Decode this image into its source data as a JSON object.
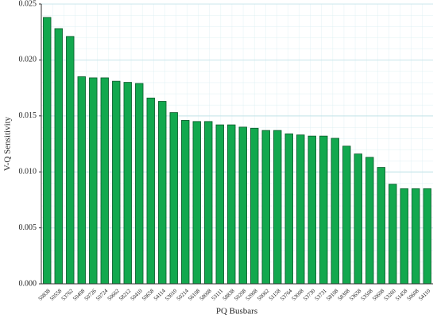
{
  "chart_data": {
    "type": "bar",
    "x_label": "PQ Busbars",
    "y_label": "V-Q Sensitivity",
    "categories": [
      "50838",
      "50558",
      "53762",
      "50408",
      "50726",
      "50724",
      "50662",
      "58212",
      "50410",
      "50658",
      "54114",
      "53010",
      "50214",
      "56108",
      "58008",
      "53111",
      "58838",
      "50208",
      "52908",
      "50062",
      "51158",
      "53764",
      "53008",
      "53730",
      "53731",
      "58108",
      "58308",
      "53658",
      "53508",
      "50608",
      "53260",
      "51458",
      "50608",
      "54110"
    ],
    "values": [
      0.0238,
      0.0228,
      0.0221,
      0.0185,
      0.0184,
      0.0184,
      0.0181,
      0.018,
      0.0179,
      0.0166,
      0.0163,
      0.0153,
      0.0146,
      0.0145,
      0.0145,
      0.0142,
      0.0142,
      0.014,
      0.0139,
      0.0137,
      0.0137,
      0.0134,
      0.0133,
      0.0132,
      0.0132,
      0.013,
      0.0123,
      0.0116,
      0.0113,
      0.0104,
      0.0089,
      0.0085,
      0.0085,
      0.0085
    ],
    "color": "#12a84e",
    "ylim": [
      0,
      0.025
    ],
    "yticks": [
      {
        "value": 0,
        "label": "0.000"
      },
      0.005,
      {
        "value": 0.01,
        "label": "0.010"
      },
      0.015,
      {
        "value": 0.02,
        "label": "0.020"
      },
      0.025
    ],
    "grid": true
  }
}
